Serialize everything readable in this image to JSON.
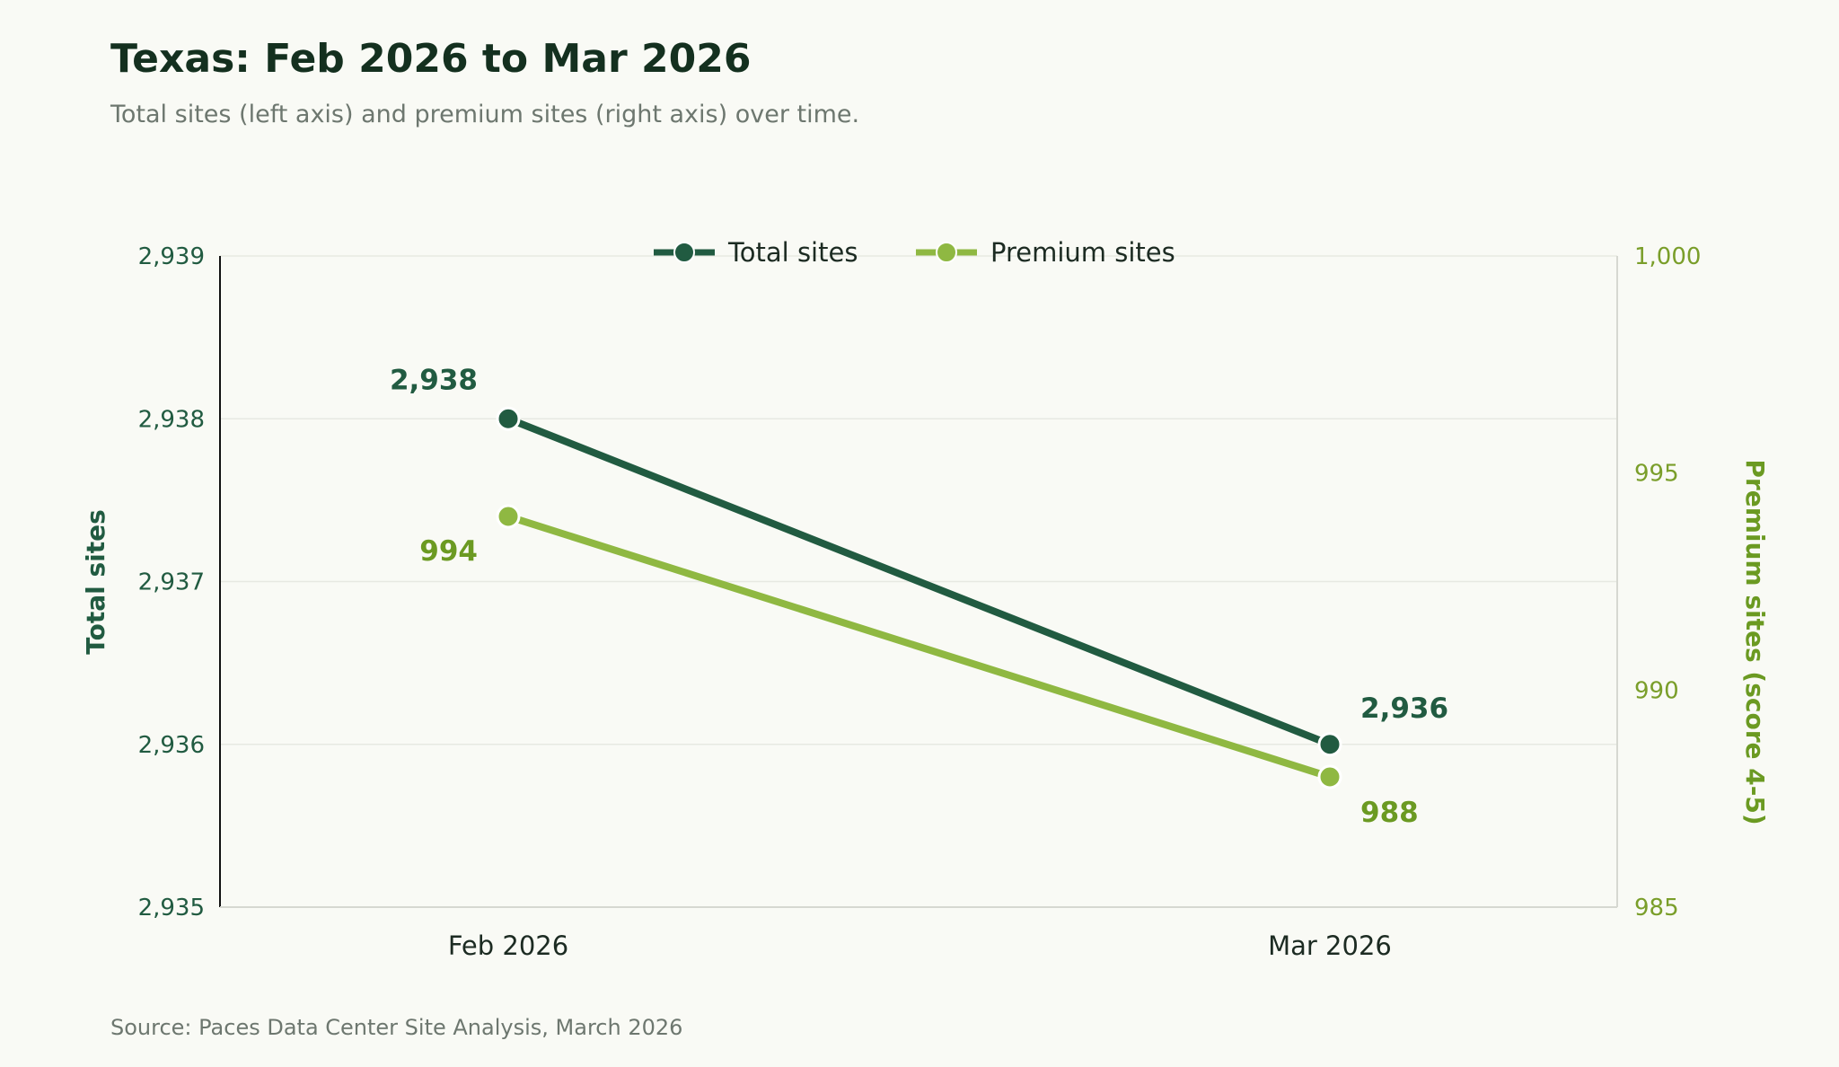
{
  "chart_data": {
    "type": "line",
    "title": "Texas: Feb 2026 to Mar 2026",
    "subtitle": "Total sites (left axis) and premium sites (right axis) over time.",
    "source": "Source: Paces Data Center Site Analysis, March 2026",
    "categories": [
      "Feb 2026",
      "Mar 2026"
    ],
    "y_left": {
      "label": "Total sites",
      "range": [
        2935,
        2939
      ],
      "ticks": [
        2935,
        2936,
        2937,
        2938,
        2939
      ],
      "tick_labels": [
        "2,935",
        "2,936",
        "2,937",
        "2,938",
        "2,939"
      ]
    },
    "y_right": {
      "label": "Premium sites (score 4-5)",
      "range": [
        985,
        1000
      ],
      "ticks": [
        985,
        990,
        995,
        1000
      ],
      "tick_labels": [
        "985",
        "990",
        "995",
        "1,000"
      ]
    },
    "series": [
      {
        "name": "Total sites",
        "axis": "left",
        "color": "#215b41",
        "values": [
          2938,
          2936
        ],
        "value_labels": [
          "2,938",
          "2,936"
        ]
      },
      {
        "name": "Premium sites",
        "axis": "right",
        "color": "#8fb842",
        "label_color": "#6b9a22",
        "values": [
          994,
          988
        ],
        "value_labels": [
          "994",
          "988"
        ]
      }
    ],
    "legend": "top-center",
    "grid": true
  }
}
